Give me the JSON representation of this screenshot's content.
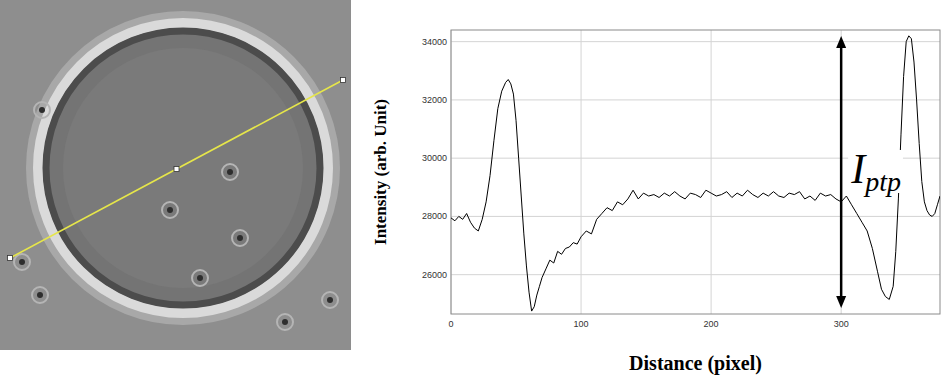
{
  "chart_data": {
    "type": "line",
    "x_label": "Distance (pixel)",
    "y_label": "Intensity (arb. Unit)",
    "x": [
      0,
      3,
      6,
      9,
      12,
      15,
      18,
      21,
      24,
      27,
      30,
      33,
      36,
      39,
      42,
      44,
      46,
      48,
      50,
      52,
      54,
      56,
      58,
      60,
      62,
      64,
      66,
      68,
      70,
      73,
      76,
      79,
      82,
      85,
      88,
      91,
      94,
      97,
      100,
      104,
      108,
      112,
      116,
      120,
      124,
      128,
      132,
      136,
      140,
      144,
      148,
      152,
      156,
      160,
      164,
      168,
      172,
      176,
      180,
      184,
      188,
      192,
      196,
      200,
      204,
      208,
      212,
      216,
      220,
      224,
      228,
      232,
      236,
      240,
      244,
      248,
      252,
      256,
      260,
      264,
      268,
      272,
      276,
      280,
      284,
      288,
      292,
      296,
      300,
      304,
      308,
      312,
      316,
      320,
      324,
      328,
      331,
      334,
      337,
      340,
      342,
      344,
      346,
      348,
      350,
      352,
      354,
      356,
      358,
      360,
      362,
      364,
      366,
      368,
      370,
      372,
      374,
      376
    ],
    "values": [
      27950,
      27850,
      28000,
      27900,
      28100,
      27800,
      27600,
      27500,
      27900,
      28500,
      29400,
      30600,
      31700,
      32300,
      32600,
      32700,
      32550,
      32200,
      31300,
      30000,
      28700,
      27400,
      26300,
      25400,
      24750,
      24900,
      25300,
      25600,
      25900,
      26200,
      26500,
      26400,
      26800,
      26700,
      26900,
      26950,
      27100,
      27050,
      27300,
      27500,
      27400,
      27900,
      28100,
      28300,
      28200,
      28500,
      28400,
      28600,
      28900,
      28600,
      28800,
      28700,
      28750,
      28650,
      28800,
      28700,
      28850,
      28700,
      28600,
      28800,
      28750,
      28650,
      28900,
      28800,
      28700,
      28750,
      28850,
      28650,
      28800,
      28700,
      28900,
      28750,
      28650,
      28800,
      28700,
      28850,
      28700,
      28650,
      28800,
      28750,
      28850,
      28600,
      28700,
      28550,
      28800,
      28700,
      28750,
      28600,
      28500,
      28700,
      28400,
      28100,
      27800,
      27500,
      26900,
      26100,
      25500,
      25250,
      25150,
      25600,
      26800,
      28600,
      30800,
      32800,
      34000,
      34200,
      34100,
      33300,
      32000,
      30500,
      29200,
      28500,
      28200,
      28050,
      28000,
      28100,
      28400,
      28700
    ],
    "color": "#000000",
    "xlim": [
      0,
      376
    ],
    "ylim": [
      24650,
      34400
    ],
    "xticks": [
      0,
      100,
      200,
      300
    ],
    "yticks": [
      26000,
      28000,
      30000,
      32000,
      34000
    ],
    "grid": true,
    "annotations": [
      {
        "text": "I",
        "subscript": "ptp",
        "x": 300
      }
    ]
  }
}
